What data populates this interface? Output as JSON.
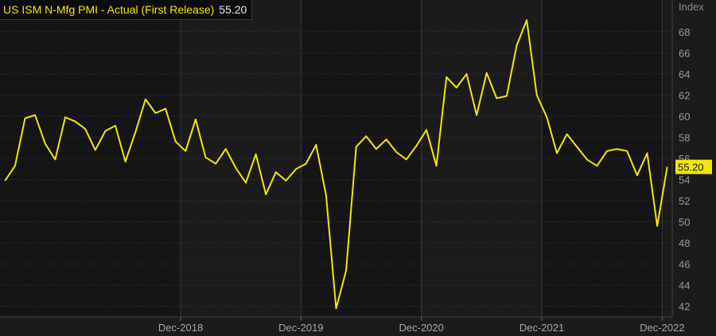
{
  "legend": {
    "label": "US ISM N-Mfg PMI - Actual (First Release)",
    "value": "55.20"
  },
  "colors": {
    "series": "#f3e700",
    "background": "#1b1b1b",
    "alt_band": "#151515",
    "grid": "#3a3a3a",
    "axis_text": "#9a9a9a"
  },
  "chart_data": {
    "type": "line",
    "unit_label": "Index",
    "ylim": [
      41,
      71
    ],
    "y_ticks": [
      42,
      44,
      46,
      48,
      50,
      52,
      54,
      56,
      58,
      60,
      62,
      64,
      66,
      68
    ],
    "xlim": [
      "2017-07",
      "2023-01"
    ],
    "x_ticks": [
      {
        "x": "2018-12",
        "label": "Dec-2018"
      },
      {
        "x": "2019-12",
        "label": "Dec-2019"
      },
      {
        "x": "2020-12",
        "label": "Dec-2020"
      },
      {
        "x": "2021-12",
        "label": "Dec-2021"
      },
      {
        "x": "2022-12",
        "label": "Dec-2022"
      }
    ],
    "grid": true,
    "last_value_label": "55.20",
    "series": [
      {
        "color": "#f3e700",
        "x": [
          "2017-07",
          "2017-08",
          "2017-09",
          "2017-10",
          "2017-11",
          "2017-12",
          "2018-01",
          "2018-02",
          "2018-03",
          "2018-04",
          "2018-05",
          "2018-06",
          "2018-07",
          "2018-08",
          "2018-09",
          "2018-10",
          "2018-11",
          "2018-12",
          "2019-01",
          "2019-02",
          "2019-03",
          "2019-04",
          "2019-05",
          "2019-06",
          "2019-07",
          "2019-08",
          "2019-09",
          "2019-10",
          "2019-11",
          "2019-12",
          "2020-01",
          "2020-02",
          "2020-03",
          "2020-04",
          "2020-05",
          "2020-06",
          "2020-07",
          "2020-08",
          "2020-09",
          "2020-10",
          "2020-11",
          "2020-12",
          "2021-01",
          "2021-02",
          "2021-03",
          "2021-04",
          "2021-05",
          "2021-06",
          "2021-07",
          "2021-08",
          "2021-09",
          "2021-10",
          "2021-11",
          "2021-12",
          "2022-01",
          "2022-02",
          "2022-03",
          "2022-04",
          "2022-05",
          "2022-06",
          "2022-07",
          "2022-08",
          "2022-09",
          "2022-10",
          "2022-11",
          "2022-12",
          "2023-01"
        ],
        "values": [
          53.9,
          55.3,
          59.8,
          60.1,
          57.4,
          55.9,
          59.9,
          59.5,
          58.8,
          56.8,
          58.6,
          59.1,
          55.7,
          58.5,
          61.6,
          60.3,
          60.7,
          57.6,
          56.7,
          59.7,
          56.1,
          55.5,
          56.9,
          55.1,
          53.7,
          56.4,
          52.6,
          54.7,
          53.9,
          55.0,
          55.5,
          57.3,
          52.5,
          41.8,
          45.4,
          57.1,
          58.1,
          56.9,
          57.8,
          56.6,
          55.9,
          57.2,
          58.7,
          55.3,
          63.7,
          62.7,
          64.0,
          60.1,
          64.1,
          61.7,
          61.9,
          66.7,
          69.1,
          62.0,
          59.9,
          56.5,
          58.3,
          57.1,
          55.9,
          55.3,
          56.7,
          56.9,
          56.7,
          54.4,
          56.5,
          49.6,
          55.2
        ]
      }
    ]
  }
}
